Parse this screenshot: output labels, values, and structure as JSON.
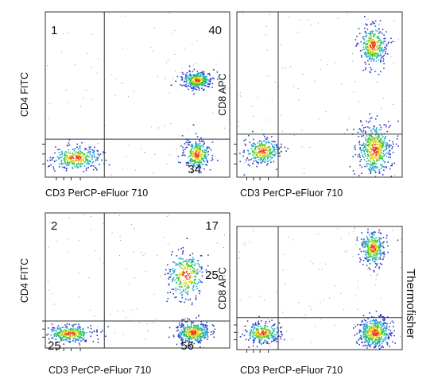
{
  "credit": "Thermofisher",
  "colors": {
    "density_low": "#2b3cc8",
    "density_mid_low": "#25a9d6",
    "density_mid": "#3ec93a",
    "density_mid_high": "#e6d21b",
    "density_high": "#e8401c",
    "gate": "#333333",
    "frame": "#333333"
  },
  "chart_data": [
    {
      "type": "scatter",
      "subtype": "flow-cytometry-density-dot-plot",
      "xlabel": "CD3 PerCP-eFluor 710",
      "ylabel": "CD4 FITC",
      "axis_scale": "log",
      "quadrant_labels": {
        "top_left": "1",
        "top_right": "40",
        "bottom_left": "",
        "bottom_right": "34"
      },
      "gate": {
        "x": 0.32,
        "y": 0.77
      },
      "populations": [
        {
          "x": 0.82,
          "y": 0.41,
          "count": 380,
          "sx": 0.04,
          "sy": 0.025
        },
        {
          "x": 0.82,
          "y": 0.86,
          "count": 300,
          "sx": 0.035,
          "sy": 0.045
        },
        {
          "x": 0.16,
          "y": 0.88,
          "count": 320,
          "sx": 0.07,
          "sy": 0.035
        }
      ]
    },
    {
      "type": "scatter",
      "subtype": "flow-cytometry-density-dot-plot",
      "xlabel": "CD3 PerCP-eFluor 710",
      "ylabel": "CD8 APC",
      "axis_scale": "log",
      "quadrant_labels": {
        "top_left": "",
        "top_right": "",
        "bottom_left": "",
        "bottom_right": ""
      },
      "gate": {
        "x": 0.25,
        "y": 0.74
      },
      "populations": [
        {
          "x": 0.82,
          "y": 0.2,
          "count": 320,
          "sx": 0.04,
          "sy": 0.06
        },
        {
          "x": 0.83,
          "y": 0.83,
          "count": 480,
          "sx": 0.05,
          "sy": 0.08
        },
        {
          "x": 0.15,
          "y": 0.84,
          "count": 280,
          "sx": 0.055,
          "sy": 0.04
        }
      ]
    },
    {
      "type": "scatter",
      "subtype": "flow-cytometry-density-dot-plot",
      "xlabel": "CD3 PerCP-eFluor 710",
      "ylabel": "CD4 FITC",
      "axis_scale": "log",
      "quadrant_labels": {
        "top_left": "2",
        "top_right": "17",
        "bottom_left": "25",
        "bottom_right": "56"
      },
      "gate": {
        "x": 0.32,
        "y": 0.8
      },
      "populations": [
        {
          "x": 0.76,
          "y": 0.46,
          "count": 300,
          "sx": 0.05,
          "sy": 0.09
        },
        {
          "x": 0.8,
          "y": 0.88,
          "count": 380,
          "sx": 0.045,
          "sy": 0.04
        },
        {
          "x": 0.13,
          "y": 0.89,
          "count": 300,
          "sx": 0.065,
          "sy": 0.03
        }
      ]
    },
    {
      "type": "scatter",
      "subtype": "flow-cytometry-density-dot-plot",
      "xlabel": "CD3 PerCP-eFluor 710",
      "ylabel": "CD8 APC",
      "axis_scale": "log",
      "quadrant_labels": {
        "top_left": "",
        "top_right": "",
        "bottom_left": "",
        "bottom_right": ""
      },
      "overlay_label": "25",
      "gate": {
        "x": 0.25,
        "y": 0.74
      },
      "populations": [
        {
          "x": 0.82,
          "y": 0.17,
          "count": 330,
          "sx": 0.035,
          "sy": 0.07
        },
        {
          "x": 0.83,
          "y": 0.86,
          "count": 450,
          "sx": 0.05,
          "sy": 0.06
        },
        {
          "x": 0.15,
          "y": 0.86,
          "count": 280,
          "sx": 0.055,
          "sy": 0.04
        }
      ]
    }
  ]
}
